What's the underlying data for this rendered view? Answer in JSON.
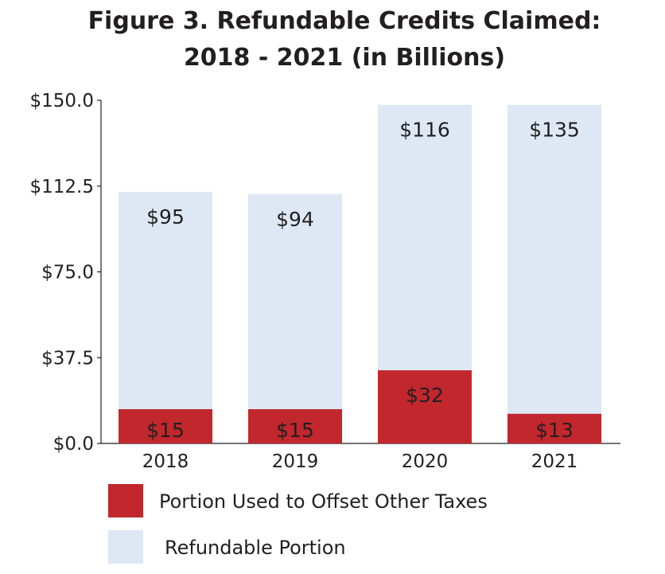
{
  "title_line_1": "Figure 3. Refundable Credits Claimed:",
  "title_line_2": "2018 - 2021 (in Billions)",
  "chart_data": {
    "type": "bar",
    "stacked": true,
    "title": "Figure 3. Refundable Credits Claimed: 2018 - 2021 (in Billions)",
    "categories": [
      "2018",
      "2019",
      "2020",
      "2021"
    ],
    "series": [
      {
        "name": "Portion Used to Offset Other Taxes",
        "values": [
          15,
          15,
          32,
          13
        ],
        "labels": [
          "$15",
          "$15",
          "$32",
          "$13"
        ],
        "color": "#c1272d"
      },
      {
        "name": "Refundable Portion",
        "values": [
          95,
          94,
          116,
          135
        ],
        "labels": [
          "$95",
          "$94",
          "$116",
          "$135"
        ],
        "color": "#dde8f4"
      }
    ],
    "y_ticks": [
      0,
      37.5,
      75,
      112.5,
      150
    ],
    "y_tick_labels": [
      "$0.0",
      "$37.5",
      "$75.0",
      "$112.5",
      "$150.0"
    ],
    "ylim": [
      0,
      150
    ],
    "grid": false,
    "legend_position": "bottom-left",
    "xlabel": "",
    "ylabel": ""
  }
}
